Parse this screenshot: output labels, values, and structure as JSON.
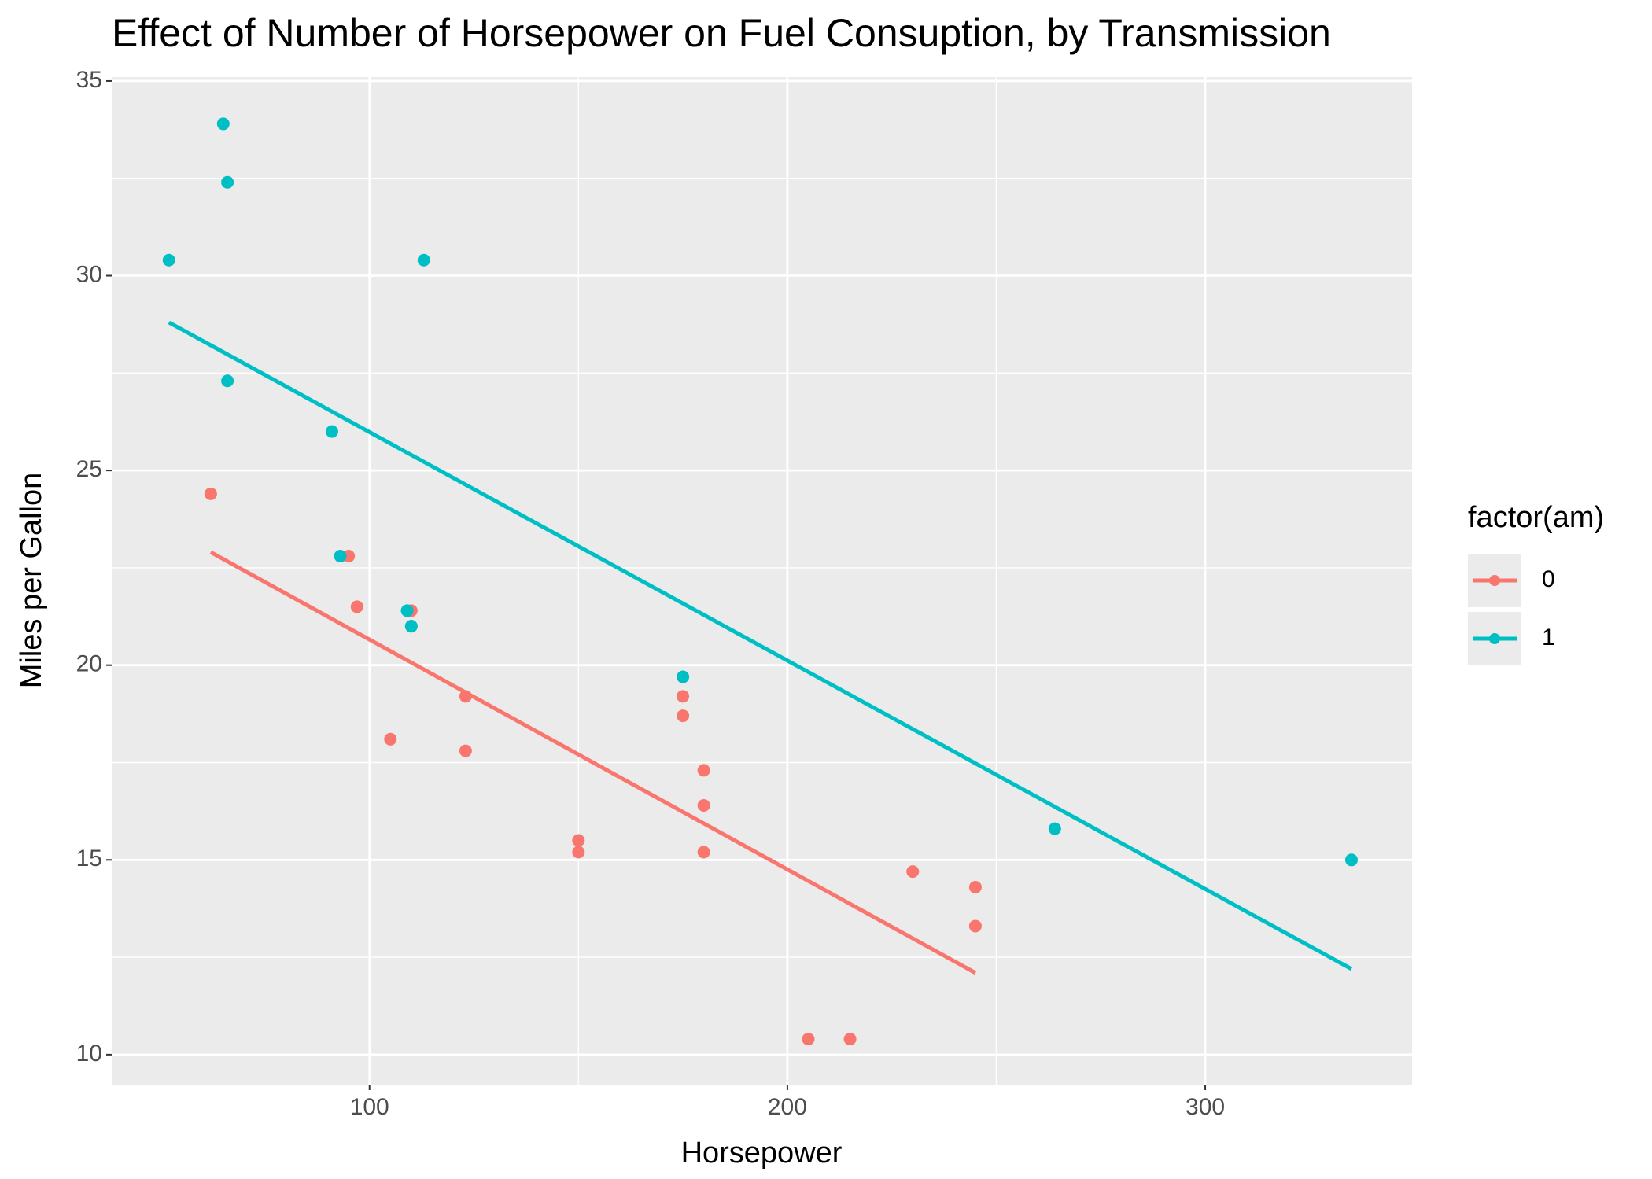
{
  "chart_data": {
    "type": "scatter",
    "title": "Effect of Number of Horsepower on Fuel Consuption, by Transmission",
    "x_label": "Horsepower",
    "y_label": "Miles per Gallon",
    "legend_title": "factor(am)",
    "legend": "right",
    "xlim": [
      38.3,
      349.5
    ],
    "xticks": [
      100,
      200,
      300
    ],
    "ylim": [
      9.23,
      35.1
    ],
    "yticks": [
      10,
      15,
      20,
      25,
      30,
      35
    ],
    "grid": true,
    "series": [
      {
        "name": "0",
        "color": "#F8766D",
        "x": [
          110,
          175,
          105,
          245,
          62,
          95,
          123,
          123,
          180,
          180,
          180,
          205,
          215,
          230,
          97,
          150,
          150,
          245,
          175
        ],
        "values": [
          21.4,
          18.7,
          18.1,
          14.3,
          24.4,
          22.8,
          19.2,
          17.8,
          16.4,
          17.3,
          15.2,
          10.4,
          10.4,
          14.7,
          21.5,
          15.5,
          15.2,
          13.3,
          19.2
        ],
        "fit_x": [
          62,
          245
        ],
        "fit_values": [
          22.9,
          12.1
        ]
      },
      {
        "name": "1",
        "color": "#00BFC4",
        "x": [
          110,
          110,
          93,
          66,
          52,
          65,
          66,
          91,
          113,
          264,
          175,
          335,
          109
        ],
        "values": [
          21,
          21,
          22.8,
          32.4,
          30.4,
          33.9,
          27.3,
          26,
          30.4,
          15.8,
          19.7,
          15,
          21.4
        ],
        "fit_x": [
          52,
          335
        ],
        "fit_values": [
          28.8,
          12.2
        ]
      }
    ]
  }
}
